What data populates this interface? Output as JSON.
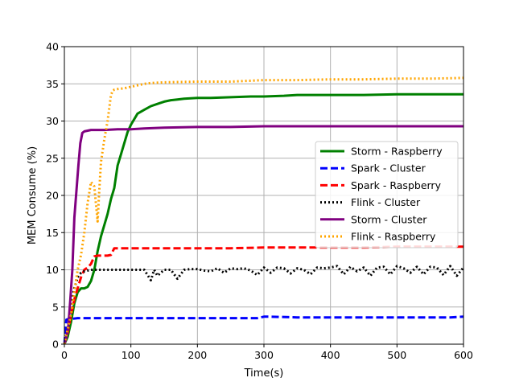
{
  "chart_data": {
    "type": "line",
    "title": "",
    "xlabel": "Time(s)",
    "ylabel": "MEM Consume (%)",
    "xlim": [
      0,
      600
    ],
    "ylim": [
      0,
      40
    ],
    "xticks": [
      0,
      100,
      200,
      300,
      400,
      500,
      600
    ],
    "yticks": [
      0,
      5,
      10,
      15,
      20,
      25,
      30,
      35,
      40
    ],
    "grid": true,
    "legend_position": "center-right",
    "series": [
      {
        "name": "Storm - Raspberry",
        "color": "#008000",
        "style": "solid",
        "x": [
          0,
          5,
          10,
          15,
          20,
          25,
          30,
          35,
          40,
          45,
          50,
          55,
          60,
          65,
          70,
          75,
          80,
          85,
          90,
          95,
          100,
          110,
          120,
          130,
          140,
          150,
          160,
          170,
          180,
          200,
          220,
          250,
          280,
          300,
          330,
          350,
          400,
          450,
          500,
          550,
          600
        ],
        "y": [
          0,
          1,
          3,
          5.5,
          7,
          7.5,
          7.5,
          7.7,
          8.5,
          10,
          12.5,
          14.5,
          16,
          17.5,
          19.5,
          21,
          24,
          25.5,
          27,
          28.5,
          29.5,
          31,
          31.5,
          32,
          32.3,
          32.6,
          32.8,
          32.9,
          33,
          33.1,
          33.1,
          33.2,
          33.3,
          33.3,
          33.4,
          33.5,
          33.5,
          33.5,
          33.6,
          33.6,
          33.6
        ]
      },
      {
        "name": "Spark - Cluster",
        "color": "#0000ff",
        "style": "dashed",
        "x": [
          0,
          3,
          6,
          10,
          20,
          40,
          60,
          80,
          100,
          130,
          160,
          200,
          250,
          290,
          300,
          310,
          350,
          400,
          450,
          500,
          550,
          580,
          600
        ],
        "y": [
          0,
          3.3,
          3.4,
          3.4,
          3.5,
          3.5,
          3.5,
          3.5,
          3.5,
          3.5,
          3.5,
          3.5,
          3.5,
          3.5,
          3.7,
          3.7,
          3.6,
          3.6,
          3.6,
          3.6,
          3.6,
          3.6,
          3.7
        ]
      },
      {
        "name": "Spark - Raspberry",
        "color": "#ff0000",
        "style": "dashed",
        "x": [
          0,
          5,
          10,
          15,
          20,
          25,
          30,
          35,
          40,
          45,
          50,
          55,
          60,
          65,
          70,
          75,
          80,
          90,
          100,
          120,
          150,
          200,
          250,
          300,
          350,
          400,
          450,
          500,
          550,
          600
        ],
        "y": [
          0,
          1.5,
          4,
          6,
          7.5,
          9,
          10,
          10.3,
          10.8,
          11.8,
          11.9,
          11.9,
          11.9,
          11.9,
          12,
          12.9,
          12.9,
          12.9,
          12.9,
          12.9,
          12.9,
          12.9,
          12.9,
          13,
          13,
          13,
          13,
          13.1,
          13.1,
          13.1
        ]
      },
      {
        "name": "Flink - Cluster",
        "color": "#000000",
        "style": "dotted",
        "x": [
          0,
          5,
          10,
          15,
          20,
          25,
          30,
          40,
          60,
          80,
          100,
          120,
          130,
          135,
          140,
          150,
          160,
          170,
          180,
          190,
          200,
          210,
          220,
          230,
          240,
          250,
          260,
          270,
          280,
          290,
          300,
          310,
          320,
          330,
          340,
          350,
          360,
          370,
          380,
          390,
          400,
          410,
          420,
          430,
          440,
          450,
          460,
          470,
          480,
          490,
          500,
          510,
          520,
          530,
          540,
          550,
          560,
          570,
          580,
          590,
          600
        ],
        "y": [
          0,
          2,
          5,
          7.5,
          9,
          9.6,
          9.8,
          10,
          10,
          10,
          10,
          10,
          8.6,
          10,
          9.2,
          10,
          10,
          8.8,
          10,
          10.1,
          10.1,
          9.9,
          9.8,
          10.2,
          9.6,
          10.2,
          10.1,
          10.2,
          9.9,
          9.3,
          10.3,
          9.6,
          10.3,
          10.2,
          9.5,
          10.2,
          10,
          9.4,
          10.3,
          10.2,
          10.3,
          10.5,
          9.4,
          10.4,
          9.8,
          10.3,
          9.2,
          10.3,
          10.4,
          9.4,
          10.5,
          10.2,
          9.6,
          10.4,
          9.4,
          10.4,
          10.3,
          9.3,
          10.5,
          9.2,
          10.3
        ]
      },
      {
        "name": "Storm - Cluster",
        "color": "#800080",
        "style": "solid",
        "x": [
          0,
          3,
          6,
          9,
          12,
          15,
          18,
          21,
          24,
          27,
          30,
          35,
          40,
          50,
          60,
          80,
          100,
          120,
          150,
          200,
          250,
          300,
          350,
          400,
          450,
          500,
          550,
          600
        ],
        "y": [
          0,
          1,
          2.5,
          6,
          10,
          17,
          20.5,
          24,
          27,
          28.4,
          28.6,
          28.7,
          28.8,
          28.8,
          28.8,
          28.9,
          28.9,
          29,
          29.1,
          29.2,
          29.2,
          29.3,
          29.3,
          29.3,
          29.3,
          29.3,
          29.3,
          29.3
        ]
      },
      {
        "name": "Flink - Raspberry",
        "color": "#ffa500",
        "style": "dotted",
        "x": [
          0,
          5,
          10,
          15,
          20,
          25,
          30,
          35,
          40,
          45,
          50,
          52,
          55,
          60,
          65,
          70,
          73,
          75,
          80,
          90,
          100,
          110,
          120,
          130,
          150,
          200,
          250,
          300,
          350,
          400,
          450,
          500,
          550,
          600
        ],
        "y": [
          0,
          2,
          4,
          7,
          10,
          12,
          15,
          19,
          21.8,
          21.2,
          16.5,
          20,
          24.5,
          27.5,
          30,
          33.5,
          34.1,
          34.2,
          34.3,
          34.4,
          34.6,
          34.8,
          35,
          35.1,
          35.2,
          35.3,
          35.3,
          35.5,
          35.5,
          35.6,
          35.6,
          35.7,
          35.7,
          35.8
        ]
      }
    ]
  }
}
